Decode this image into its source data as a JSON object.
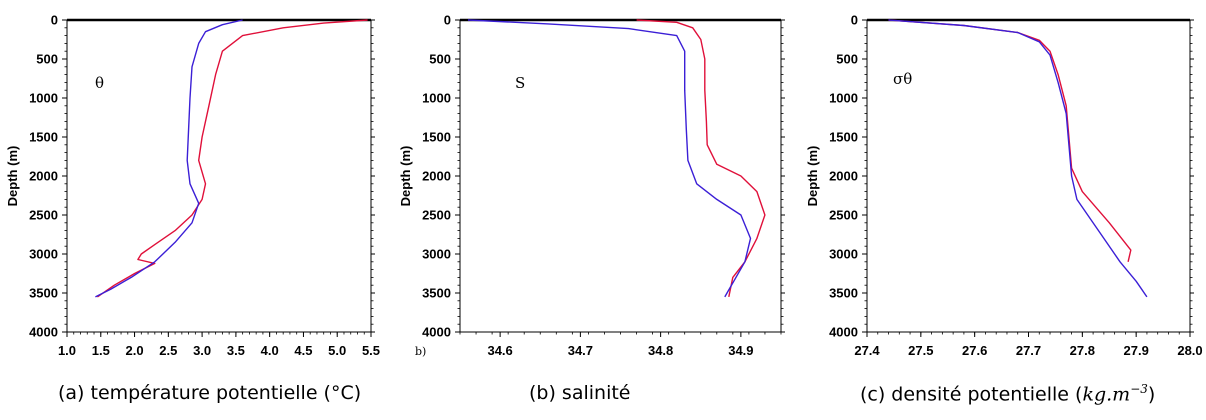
{
  "colors": {
    "series_a": "#e0103a",
    "series_b": "#3b1fd6",
    "axis": "#000000"
  },
  "stray_label": "b)",
  "captions": [
    {
      "text": "(a) température potentielle (°C)"
    },
    {
      "text": "(b) salinité"
    },
    {
      "text_prefix": "(c) densité potentielle (",
      "math": "kg.m",
      "sup": "−3",
      "text_suffix": ")"
    }
  ],
  "chart_data": [
    {
      "type": "line",
      "annotation": "θ",
      "ylabel": "Depth (m)",
      "xlim": [
        1.0,
        5.5
      ],
      "ylim": [
        4000,
        0
      ],
      "y_reversed": true,
      "xticks": [
        "1.0",
        "1.5",
        "2.0",
        "2.5",
        "3.0",
        "3.5",
        "4.0",
        "4.5",
        "5.0",
        "5.5"
      ],
      "yticks": [
        "0",
        "500",
        "1000",
        "1500",
        "2000",
        "2500",
        "3000",
        "3500",
        "4000"
      ],
      "series": [
        {
          "color": "red",
          "points": [
            [
              5.45,
              0
            ],
            [
              4.8,
              40
            ],
            [
              4.2,
              100
            ],
            [
              3.6,
              200
            ],
            [
              3.3,
              400
            ],
            [
              3.2,
              700
            ],
            [
              3.1,
              1100
            ],
            [
              3.0,
              1500
            ],
            [
              2.95,
              1800
            ],
            [
              3.05,
              2100
            ],
            [
              3.0,
              2300
            ],
            [
              2.85,
              2500
            ],
            [
              2.6,
              2700
            ],
            [
              2.3,
              2880
            ],
            [
              2.1,
              3000
            ],
            [
              2.05,
              3070
            ],
            [
              2.3,
              3120
            ],
            [
              2.0,
              3250
            ],
            [
              1.7,
              3400
            ],
            [
              1.45,
              3550
            ]
          ]
        },
        {
          "color": "blue",
          "points": [
            [
              3.6,
              0
            ],
            [
              3.3,
              60
            ],
            [
              3.05,
              150
            ],
            [
              2.95,
              300
            ],
            [
              2.85,
              600
            ],
            [
              2.82,
              1000
            ],
            [
              2.8,
              1400
            ],
            [
              2.78,
              1800
            ],
            [
              2.82,
              2100
            ],
            [
              2.95,
              2350
            ],
            [
              2.85,
              2600
            ],
            [
              2.6,
              2850
            ],
            [
              2.3,
              3100
            ],
            [
              1.95,
              3300
            ],
            [
              1.65,
              3450
            ],
            [
              1.42,
              3550
            ]
          ]
        }
      ]
    },
    {
      "type": "line",
      "annotation": "S",
      "ylabel": "Depth (m)",
      "xlim": [
        34.55,
        34.95
      ],
      "ylim": [
        4000,
        0
      ],
      "y_reversed": true,
      "xticks": [
        "34.6",
        "34.7",
        "34.8",
        "34.9"
      ],
      "yticks": [
        "0",
        "500",
        "1000",
        "1500",
        "2000",
        "2500",
        "3000",
        "3500",
        "4000"
      ],
      "series": [
        {
          "color": "red",
          "points": [
            [
              34.77,
              0
            ],
            [
              34.82,
              30
            ],
            [
              34.84,
              100
            ],
            [
              34.85,
              250
            ],
            [
              34.855,
              500
            ],
            [
              34.855,
              900
            ],
            [
              34.857,
              1300
            ],
            [
              34.858,
              1600
            ],
            [
              34.87,
              1850
            ],
            [
              34.9,
              2000
            ],
            [
              34.92,
              2200
            ],
            [
              34.93,
              2500
            ],
            [
              34.92,
              2800
            ],
            [
              34.905,
              3100
            ],
            [
              34.89,
              3300
            ],
            [
              34.885,
              3550
            ]
          ]
        },
        {
          "color": "blue",
          "points": [
            [
              34.56,
              0
            ],
            [
              34.66,
              50
            ],
            [
              34.76,
              110
            ],
            [
              34.82,
              200
            ],
            [
              34.83,
              400
            ],
            [
              34.83,
              900
            ],
            [
              34.832,
              1400
            ],
            [
              34.834,
              1800
            ],
            [
              34.845,
              2100
            ],
            [
              34.87,
              2300
            ],
            [
              34.9,
              2500
            ],
            [
              34.912,
              2800
            ],
            [
              34.905,
              3100
            ],
            [
              34.88,
              3550
            ]
          ]
        }
      ]
    },
    {
      "type": "line",
      "annotation": "σθ",
      "ylabel": "Depth (m)",
      "xlim": [
        27.4,
        28.0
      ],
      "ylim": [
        4000,
        0
      ],
      "y_reversed": true,
      "xticks": [
        "27.4",
        "27.5",
        "27.6",
        "27.7",
        "27.8",
        "27.9",
        "28.0"
      ],
      "yticks": [
        "0",
        "500",
        "1000",
        "1500",
        "2000",
        "2500",
        "3000",
        "3500",
        "4000"
      ],
      "series": [
        {
          "color": "red",
          "points": [
            [
              27.44,
              0
            ],
            [
              27.58,
              70
            ],
            [
              27.68,
              160
            ],
            [
              27.72,
              260
            ],
            [
              27.74,
              400
            ],
            [
              27.755,
              700
            ],
            [
              27.77,
              1100
            ],
            [
              27.775,
              1500
            ],
            [
              27.78,
              1900
            ],
            [
              27.8,
              2200
            ],
            [
              27.85,
              2600
            ],
            [
              27.89,
              2950
            ],
            [
              27.885,
              3100
            ]
          ]
        },
        {
          "color": "blue",
          "points": [
            [
              27.44,
              0
            ],
            [
              27.58,
              70
            ],
            [
              27.68,
              160
            ],
            [
              27.72,
              280
            ],
            [
              27.74,
              450
            ],
            [
              27.755,
              800
            ],
            [
              27.77,
              1200
            ],
            [
              27.775,
              1600
            ],
            [
              27.78,
              2000
            ],
            [
              27.79,
              2300
            ],
            [
              27.83,
              2700
            ],
            [
              27.87,
              3100
            ],
            [
              27.9,
              3350
            ],
            [
              27.92,
              3550
            ]
          ]
        }
      ]
    }
  ]
}
